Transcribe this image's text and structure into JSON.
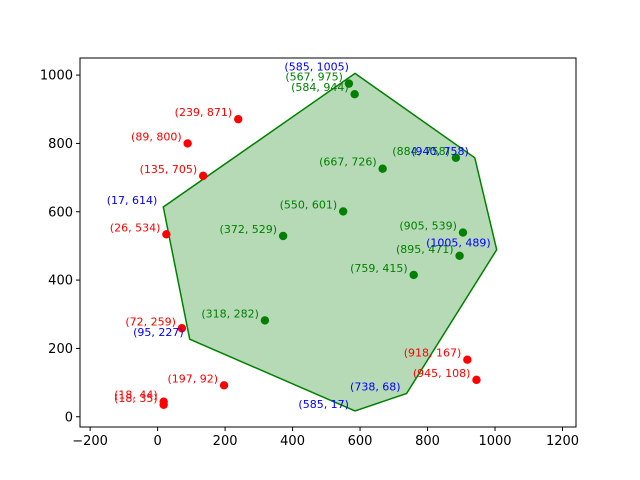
{
  "chart_data": {
    "type": "scatter",
    "title": "",
    "xlabel": "",
    "ylabel": "",
    "xlim": [
      -230,
      1240
    ],
    "ylim": [
      -30,
      1050
    ],
    "xticks": [
      -200,
      0,
      200,
      400,
      600,
      800,
      1000,
      1200
    ],
    "yticks": [
      0,
      200,
      400,
      600,
      800,
      1000
    ],
    "grid": false,
    "hull": {
      "fill": "#b2d8b2",
      "stroke": "#008000",
      "vertices": [
        [
          585,
          1005
        ],
        [
          940,
          758
        ],
        [
          1005,
          489
        ],
        [
          738,
          68
        ],
        [
          585,
          17
        ],
        [
          95,
          227
        ],
        [
          17,
          614
        ]
      ]
    },
    "hull_vertex_labels": {
      "color": "#0000ff",
      "points": [
        {
          "x": 585,
          "y": 1005,
          "label": "(585, 1005)"
        },
        {
          "x": 940,
          "y": 758,
          "label": "(940, 758)"
        },
        {
          "x": 1005,
          "y": 489,
          "label": "(1005, 489)"
        },
        {
          "x": 738,
          "y": 68,
          "label": "(738, 68)"
        },
        {
          "x": 585,
          "y": 17,
          "label": "(585, 17)"
        },
        {
          "x": 95,
          "y": 227,
          "label": "(95, 227)"
        },
        {
          "x": 17,
          "y": 614,
          "label": "(17, 614)"
        }
      ]
    },
    "inside_points": {
      "color": "#008000",
      "points": [
        {
          "x": 567,
          "y": 975,
          "label": "(567, 975)"
        },
        {
          "x": 584,
          "y": 944,
          "label": "(584, 944)"
        },
        {
          "x": 667,
          "y": 726,
          "label": "(667, 726)"
        },
        {
          "x": 884,
          "y": 758,
          "label": "(884, 758)"
        },
        {
          "x": 550,
          "y": 601,
          "label": "(550, 601)"
        },
        {
          "x": 372,
          "y": 529,
          "label": "(372, 529)"
        },
        {
          "x": 905,
          "y": 539,
          "label": "(905, 539)"
        },
        {
          "x": 895,
          "y": 471,
          "label": "(895, 471)"
        },
        {
          "x": 759,
          "y": 415,
          "label": "(759, 415)"
        },
        {
          "x": 318,
          "y": 282,
          "label": "(318, 282)"
        }
      ]
    },
    "outside_points": {
      "color": "#ff0000",
      "points": [
        {
          "x": 239,
          "y": 871,
          "label": "(239, 871)"
        },
        {
          "x": 89,
          "y": 800,
          "label": "(89, 800)"
        },
        {
          "x": 135,
          "y": 705,
          "label": "(135, 705)"
        },
        {
          "x": 26,
          "y": 534,
          "label": "(26, 534)"
        },
        {
          "x": 72,
          "y": 259,
          "label": "(72, 259)"
        },
        {
          "x": 197,
          "y": 92,
          "label": "(197, 92)"
        },
        {
          "x": 18,
          "y": 44,
          "label": "(18, 44)"
        },
        {
          "x": 18,
          "y": 35,
          "label": "(18, 35)"
        },
        {
          "x": 918,
          "y": 167,
          "label": "(918, 167)"
        },
        {
          "x": 945,
          "y": 108,
          "label": "(945, 108)"
        }
      ]
    }
  }
}
